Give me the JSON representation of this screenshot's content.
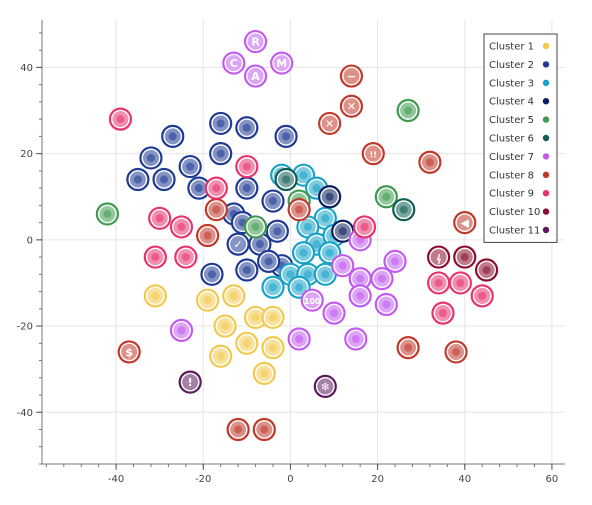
{
  "chart_data": {
    "type": "scatter",
    "title": "",
    "xlabel": "",
    "ylabel": "",
    "xlim": [
      -57,
      63
    ],
    "ylim": [
      -52,
      51
    ],
    "x_ticks": [
      -40,
      -20,
      0,
      20,
      40,
      60
    ],
    "y_ticks": [
      -40,
      -20,
      0,
      20,
      40
    ],
    "x_tick_labels": [
      "-40",
      "-20",
      "0",
      "20",
      "40",
      "60"
    ],
    "y_tick_labels": [
      "-40",
      "-20",
      "0",
      "20",
      "40"
    ],
    "grid": true,
    "legend_position": "top-right",
    "series": [
      {
        "name": "Cluster 1",
        "color": "#f2c94c",
        "points": [
          {
            "x": -31,
            "y": -13,
            "icon": "orange"
          },
          {
            "x": -19,
            "y": -14,
            "icon": "green-heart"
          },
          {
            "x": -13,
            "y": -13,
            "icon": "yellow-heart"
          },
          {
            "x": -15,
            "y": -20,
            "icon": "bear-face"
          },
          {
            "x": -8,
            "y": -18,
            "icon": "basketball"
          },
          {
            "x": -4,
            "y": -18,
            "icon": "blue-heart"
          },
          {
            "x": -16,
            "y": -27,
            "icon": "tiger-face"
          },
          {
            "x": -10,
            "y": -24,
            "icon": "football"
          },
          {
            "x": -4,
            "y": -25,
            "icon": "paw-prints"
          },
          {
            "x": -6,
            "y": -31,
            "icon": "bee"
          }
        ]
      },
      {
        "name": "Cluster 2",
        "color": "#1f3a93",
        "points": [
          {
            "x": -27,
            "y": 24,
            "icon": "christmas-tree"
          },
          {
            "x": -16,
            "y": 27,
            "icon": "palm-tree"
          },
          {
            "x": -10,
            "y": 26,
            "icon": "crescent-moon"
          },
          {
            "x": -32,
            "y": 19,
            "icon": "shrimp"
          },
          {
            "x": -16,
            "y": 20,
            "icon": "smiling-face"
          },
          {
            "x": -35,
            "y": 14,
            "icon": "maple-leaf"
          },
          {
            "x": -29,
            "y": 14,
            "icon": "fish"
          },
          {
            "x": -23,
            "y": 17,
            "icon": "sunflower"
          },
          {
            "x": -21,
            "y": 12,
            "icon": "cherry-blossom"
          },
          {
            "x": -13,
            "y": 6,
            "icon": "rose"
          },
          {
            "x": -10,
            "y": 12,
            "icon": "tulip"
          },
          {
            "x": -4,
            "y": 9,
            "icon": "bouquet"
          },
          {
            "x": -12,
            "y": -1,
            "icon": "check-mark"
          },
          {
            "x": -7,
            "y": -1,
            "icon": "red-heart"
          },
          {
            "x": -3,
            "y": 2,
            "icon": "sparkling-heart"
          },
          {
            "x": -10,
            "y": -7,
            "icon": "sun"
          },
          {
            "x": -2,
            "y": -6,
            "icon": "hand"
          },
          {
            "x": -18,
            "y": -8,
            "icon": "earth"
          },
          {
            "x": -5,
            "y": -5,
            "icon": "star"
          },
          {
            "x": -1,
            "y": 24,
            "icon": "syringe"
          },
          {
            "x": -11,
            "y": 4,
            "icon": "heart-eyes"
          }
        ]
      },
      {
        "name": "Cluster 3",
        "color": "#17a2c8",
        "points": [
          {
            "x": -2,
            "y": 15,
            "icon": "grinning"
          },
          {
            "x": 3,
            "y": 15,
            "icon": "smile"
          },
          {
            "x": 6,
            "y": 12,
            "icon": "beaming"
          },
          {
            "x": 8,
            "y": 5,
            "icon": "thumbs-up"
          },
          {
            "x": 4,
            "y": 3,
            "icon": "flexed-biceps"
          },
          {
            "x": 6,
            "y": -1,
            "icon": "raising-hands"
          },
          {
            "x": 10,
            "y": 1,
            "icon": "clapping"
          },
          {
            "x": 3,
            "y": -3,
            "icon": "sunglasses"
          },
          {
            "x": 9,
            "y": -3,
            "icon": "folded-hands"
          },
          {
            "x": 0,
            "y": -8,
            "icon": "strong"
          },
          {
            "x": 4,
            "y": -8,
            "icon": "devil"
          },
          {
            "x": 8,
            "y": -8,
            "icon": "ok-hand"
          },
          {
            "x": -4,
            "y": -11,
            "icon": "muscle"
          },
          {
            "x": 2,
            "y": -11,
            "icon": "astonished"
          }
        ]
      },
      {
        "name": "Cluster 4",
        "color": "#0b1f5e",
        "points": [
          {
            "x": 12,
            "y": 2,
            "icon": "grimacing"
          },
          {
            "x": 9,
            "y": 10,
            "icon": "camera"
          }
        ]
      },
      {
        "name": "Cluster 5",
        "color": "#3e9a4f",
        "points": [
          {
            "x": -42,
            "y": 6,
            "icon": "cloud"
          },
          {
            "x": 27,
            "y": 30,
            "icon": "crying-laughing"
          },
          {
            "x": 22,
            "y": 10,
            "icon": "jack-o-lantern"
          },
          {
            "x": 2,
            "y": 9,
            "icon": "kiss"
          },
          {
            "x": -8,
            "y": 3,
            "icon": "wink"
          }
        ]
      },
      {
        "name": "Cluster 6",
        "color": "#0f5e55",
        "points": [
          {
            "x": -1,
            "y": 14,
            "icon": "hugging"
          },
          {
            "x": 26,
            "y": 7,
            "icon": "ghost"
          }
        ]
      },
      {
        "name": "Cluster 7",
        "color": "#c25bf0",
        "points": [
          {
            "x": -8,
            "y": 46,
            "icon": "letter-R"
          },
          {
            "x": -13,
            "y": 41,
            "icon": "letter-C"
          },
          {
            "x": -8,
            "y": 38,
            "icon": "letter-A"
          },
          {
            "x": -2,
            "y": 41,
            "icon": "letter-M"
          },
          {
            "x": 16,
            "y": 0,
            "icon": "drooling"
          },
          {
            "x": 12,
            "y": -6,
            "icon": "laughing"
          },
          {
            "x": 16,
            "y": -9,
            "icon": "grin"
          },
          {
            "x": 16,
            "y": -13,
            "icon": "smirk"
          },
          {
            "x": 21,
            "y": -9,
            "icon": "relieved"
          },
          {
            "x": 24,
            "y": -5,
            "icon": "pensive"
          },
          {
            "x": 22,
            "y": -15,
            "icon": "cold-sweat"
          },
          {
            "x": 5,
            "y": -14,
            "icon": "hundred"
          },
          {
            "x": 10,
            "y": -17,
            "icon": "unamused"
          },
          {
            "x": 15,
            "y": -23,
            "icon": "weary"
          },
          {
            "x": 2,
            "y": -23,
            "icon": "baseball"
          },
          {
            "x": -25,
            "y": -21,
            "icon": "eggplant"
          }
        ]
      },
      {
        "name": "Cluster 8",
        "color": "#c0392b",
        "points": [
          {
            "x": 14,
            "y": 38,
            "icon": "minus"
          },
          {
            "x": 14,
            "y": 31,
            "icon": "cross-x"
          },
          {
            "x": 9,
            "y": 27,
            "icon": "x-mark"
          },
          {
            "x": 19,
            "y": 20,
            "icon": "double-exclamation"
          },
          {
            "x": 32,
            "y": 18,
            "icon": "fez"
          },
          {
            "x": 40,
            "y": 4,
            "icon": "speaker"
          },
          {
            "x": -37,
            "y": -26,
            "icon": "dollar"
          },
          {
            "x": 27,
            "y": -25,
            "icon": "clapper"
          },
          {
            "x": 38,
            "y": -26,
            "icon": "megaphone"
          },
          {
            "x": -12,
            "y": -44,
            "icon": "ice-cream"
          },
          {
            "x": -6,
            "y": -44,
            "icon": "lollipop"
          },
          {
            "x": -17,
            "y": 7,
            "icon": "apple"
          },
          {
            "x": 2,
            "y": 7,
            "icon": "chili"
          },
          {
            "x": -19,
            "y": 1,
            "icon": "beer"
          }
        ]
      },
      {
        "name": "Cluster 9",
        "color": "#e8336d",
        "points": [
          {
            "x": -39,
            "y": 28,
            "icon": "pizza"
          },
          {
            "x": -10,
            "y": 17,
            "icon": "tropical-drink"
          },
          {
            "x": -30,
            "y": 5,
            "icon": "cocktail"
          },
          {
            "x": -25,
            "y": 3,
            "icon": "wine-glass"
          },
          {
            "x": -31,
            "y": -4,
            "icon": "poultry-leg"
          },
          {
            "x": -24,
            "y": -4,
            "icon": "fork-knife"
          },
          {
            "x": -17,
            "y": 12,
            "icon": "fries"
          },
          {
            "x": 17,
            "y": 3,
            "icon": "flushed"
          },
          {
            "x": 34,
            "y": -10,
            "icon": "headphones"
          },
          {
            "x": 39,
            "y": -10,
            "icon": "headset"
          },
          {
            "x": 44,
            "y": -13,
            "icon": "drum"
          },
          {
            "x": 35,
            "y": -17,
            "icon": "guitar"
          }
        ]
      },
      {
        "name": "Cluster 10",
        "color": "#8b0f2e",
        "points": [
          {
            "x": 34,
            "y": -4,
            "icon": "treble-clef"
          },
          {
            "x": 40,
            "y": -4,
            "icon": "microphone"
          },
          {
            "x": 45,
            "y": -7,
            "icon": "piano"
          }
        ]
      },
      {
        "name": "Cluster 11",
        "color": "#5b1a5e",
        "points": [
          {
            "x": -23,
            "y": -33,
            "icon": "exclamation"
          },
          {
            "x": 8,
            "y": -34,
            "icon": "snowflake"
          }
        ]
      }
    ]
  }
}
